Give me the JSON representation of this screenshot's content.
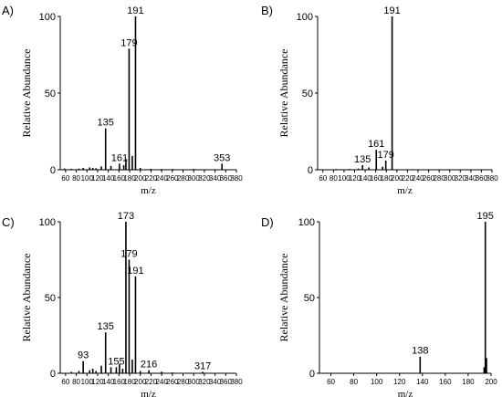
{
  "chart_data": [
    {
      "panel": "A)",
      "type": "bar",
      "xlabel": "m/z",
      "ylabel": "Relative Abundance",
      "xlim": [
        50,
        380
      ],
      "ylim": [
        0,
        100
      ],
      "xticks": [
        60,
        80,
        100,
        120,
        140,
        160,
        180,
        200,
        220,
        240,
        260,
        280,
        300,
        320,
        340,
        360,
        380
      ],
      "yticks": [
        0,
        50,
        100
      ],
      "peaks": [
        {
          "mz": 58,
          "value": 0.8
        },
        {
          "mz": 71,
          "value": 0.6
        },
        {
          "mz": 85,
          "value": 0.8
        },
        {
          "mz": 93,
          "value": 1.2
        },
        {
          "mz": 105,
          "value": 1.5
        },
        {
          "mz": 111,
          "value": 1.2
        },
        {
          "mz": 117,
          "value": 1.0
        },
        {
          "mz": 127,
          "value": 2.2
        },
        {
          "mz": 135,
          "value": 27,
          "label": "135"
        },
        {
          "mz": 145,
          "value": 2.5
        },
        {
          "mz": 161,
          "value": 4,
          "label": "161"
        },
        {
          "mz": 169,
          "value": 3
        },
        {
          "mz": 173,
          "value": 7
        },
        {
          "mz": 179,
          "value": 79,
          "label": "179"
        },
        {
          "mz": 185,
          "value": 9
        },
        {
          "mz": 191,
          "value": 100,
          "label": "191"
        },
        {
          "mz": 200,
          "value": 1.2
        },
        {
          "mz": 220,
          "value": 0.6
        },
        {
          "mz": 240,
          "value": 0.5
        },
        {
          "mz": 260,
          "value": 0.5
        },
        {
          "mz": 300,
          "value": 0.5
        },
        {
          "mz": 353,
          "value": 4,
          "label": "353"
        }
      ]
    },
    {
      "panel": "B)",
      "type": "bar",
      "xlabel": "m/z",
      "ylabel": "Relative Abundance",
      "xlim": [
        50,
        380
      ],
      "ylim": [
        0,
        100
      ],
      "xticks": [
        60,
        80,
        100,
        120,
        140,
        160,
        180,
        200,
        220,
        240,
        260,
        280,
        300,
        320,
        340,
        360,
        380
      ],
      "yticks": [
        0,
        50,
        100
      ],
      "peaks": [
        {
          "mz": 85,
          "value": 0.5
        },
        {
          "mz": 110,
          "value": 0.5
        },
        {
          "mz": 127,
          "value": 0.8
        },
        {
          "mz": 135,
          "value": 3,
          "label": "135"
        },
        {
          "mz": 147,
          "value": 1.5
        },
        {
          "mz": 161,
          "value": 13,
          "label": "161"
        },
        {
          "mz": 173,
          "value": 2
        },
        {
          "mz": 179,
          "value": 6,
          "label": "179"
        },
        {
          "mz": 191,
          "value": 100,
          "label": "191"
        },
        {
          "mz": 230,
          "value": 0.4
        },
        {
          "mz": 300,
          "value": 0.3
        }
      ]
    },
    {
      "panel": "C)",
      "type": "bar",
      "xlabel": "m/z",
      "ylabel": "Relative Abundance",
      "xlim": [
        50,
        380
      ],
      "ylim": [
        0,
        100
      ],
      "xticks": [
        60,
        80,
        100,
        120,
        140,
        160,
        180,
        200,
        220,
        240,
        260,
        280,
        300,
        320,
        340,
        360,
        380
      ],
      "yticks": [
        0,
        50,
        100
      ],
      "peaks": [
        {
          "mz": 71,
          "value": 1
        },
        {
          "mz": 85,
          "value": 1.5
        },
        {
          "mz": 93,
          "value": 8,
          "label": "93"
        },
        {
          "mz": 105,
          "value": 2
        },
        {
          "mz": 111,
          "value": 3
        },
        {
          "mz": 117,
          "value": 1.5
        },
        {
          "mz": 127,
          "value": 5
        },
        {
          "mz": 135,
          "value": 27,
          "label": "135"
        },
        {
          "mz": 145,
          "value": 4
        },
        {
          "mz": 155,
          "value": 4,
          "label": "155"
        },
        {
          "mz": 161,
          "value": 6
        },
        {
          "mz": 167,
          "value": 3
        },
        {
          "mz": 173,
          "value": 100,
          "label": "173"
        },
        {
          "mz": 179,
          "value": 75,
          "label": "179"
        },
        {
          "mz": 185,
          "value": 9
        },
        {
          "mz": 191,
          "value": 64,
          "label": "191"
        },
        {
          "mz": 200,
          "value": 1.5
        },
        {
          "mz": 216,
          "value": 2,
          "label": "216"
        },
        {
          "mz": 240,
          "value": 1
        },
        {
          "mz": 260,
          "value": 0.5
        },
        {
          "mz": 317,
          "value": 1,
          "label": "317"
        }
      ]
    },
    {
      "panel": "D)",
      "type": "bar",
      "xlabel": "m/z",
      "ylabel": "Relative Abundance",
      "xlim": [
        50,
        200
      ],
      "ylim": [
        0,
        100
      ],
      "xticks": [
        60,
        80,
        100,
        120,
        140,
        160,
        180,
        200
      ],
      "yticks": [
        0,
        50,
        100
      ],
      "peaks": [
        {
          "mz": 138,
          "value": 11,
          "label": "138"
        },
        {
          "mz": 194,
          "value": 4
        },
        {
          "mz": 195,
          "value": 100,
          "label": "195"
        },
        {
          "mz": 196,
          "value": 10
        }
      ]
    }
  ]
}
